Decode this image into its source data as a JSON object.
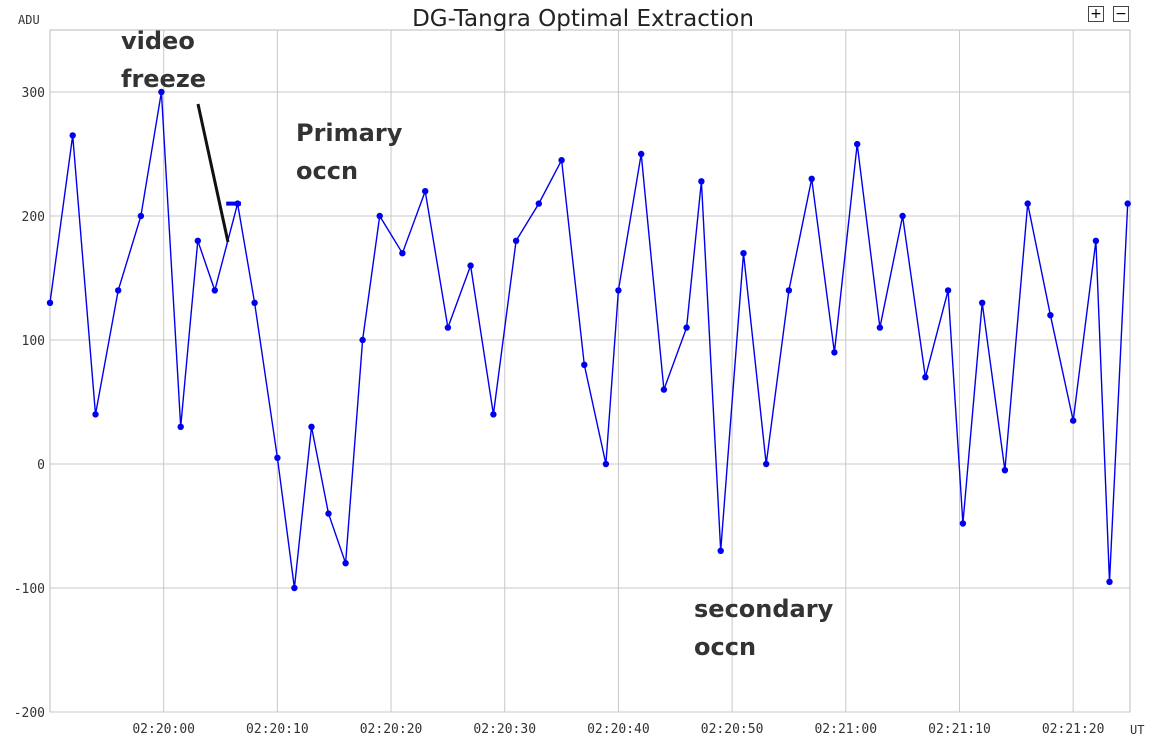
{
  "chart_data": {
    "type": "line",
    "title": "DG-Tangra Optimal Extraction",
    "ylabel": "ADU",
    "xlabel": "UT",
    "ylim": [
      -200,
      350
    ],
    "xlim": [
      "02:19:50",
      "02:21:25"
    ],
    "y_ticks": [
      "300",
      "200",
      "100",
      "0",
      "-100",
      "-200"
    ],
    "x_ticks": [
      "02:20:00",
      "02:20:10",
      "02:20:20",
      "02:20:30",
      "02:20:40",
      "02:20:50",
      "02:21:00",
      "02:21:10",
      "02:21:20"
    ],
    "grid": true,
    "series": [
      {
        "color": "#0000ee",
        "x": [
          "02:19:50.0",
          "02:19:52.0",
          "02:19:54.0",
          "02:19:56.0",
          "02:19:58.0",
          "02:19:59.8",
          "02:20:01.5",
          "02:20:03.0",
          "02:20:04.5",
          "02:20:06.5",
          "02:20:08.0",
          "02:20:10.0",
          "02:20:11.5",
          "02:20:13.0",
          "02:20:14.5",
          "02:20:16.0",
          "02:20:17.5",
          "02:20:19.0",
          "02:20:21.0",
          "02:20:23.0",
          "02:20:25.0",
          "02:20:27.0",
          "02:20:29.0",
          "02:20:31.0",
          "02:20:33.0",
          "02:20:35.0",
          "02:20:37.0",
          "02:20:38.9",
          "02:20:40.0",
          "02:20:42.0",
          "02:20:44.0",
          "02:20:46.0",
          "02:20:47.3",
          "02:20:49.0",
          "02:20:51.0",
          "02:20:53.0",
          "02:20:55.0",
          "02:20:57.0",
          "02:20:59.0",
          "02:21:01.0",
          "02:21:03.0",
          "02:21:05.0",
          "02:21:07.0",
          "02:21:09.0",
          "02:21:10.3",
          "02:21:12.0",
          "02:21:14.0",
          "02:21:16.0",
          "02:21:18.0",
          "02:21:20.0",
          "02:21:22.0",
          "02:21:23.2",
          "02:21:24.8"
        ],
        "y": [
          130,
          265,
          40,
          140,
          200,
          300,
          30,
          180,
          140,
          210,
          130,
          5,
          -100,
          30,
          -40,
          -80,
          100,
          200,
          170,
          220,
          110,
          160,
          40,
          180,
          210,
          245,
          80,
          0,
          140,
          250,
          60,
          110,
          228,
          -70,
          170,
          0,
          140,
          230,
          90,
          258,
          110,
          200,
          70,
          140,
          -48,
          130,
          -5,
          210,
          120,
          35,
          180,
          -95,
          210
        ]
      }
    ],
    "annotations": [
      {
        "text_line1": "video",
        "text_line2": "freeze",
        "flat_segment": {
          "x_start": "02:20:05.5",
          "x_end": "02:20:06.8",
          "y": 210
        }
      },
      {
        "text_line1": "Primary",
        "text_line2": "occn"
      },
      {
        "text_line1": "secondary",
        "text_line2": "occn"
      }
    ]
  },
  "controls": {
    "zoom_in": "+",
    "zoom_out": "−"
  }
}
